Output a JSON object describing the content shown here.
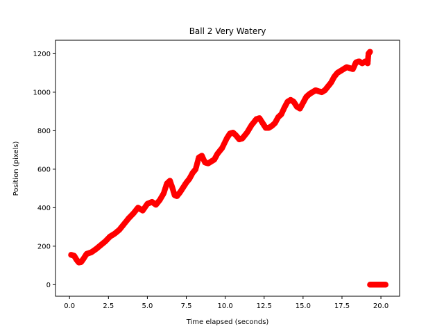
{
  "chart_data": {
    "type": "scatter",
    "title": "Ball 2 Very Watery",
    "xlabel": "Time elapsed (seconds)",
    "ylabel": "Position (pixels)",
    "xlim": [
      -0.9,
      21.2
    ],
    "ylim": [
      -60,
      1270
    ],
    "grid": false,
    "marker_color": "#ff0000",
    "x_ticks": [
      0.0,
      2.5,
      5.0,
      7.5,
      10.0,
      12.5,
      15.0,
      17.5,
      20.0
    ],
    "x_tick_labels": [
      "0.0",
      "2.5",
      "5.0",
      "7.5",
      "10.0",
      "12.5",
      "15.0",
      "17.5",
      "20.0"
    ],
    "y_ticks": [
      0,
      200,
      400,
      600,
      800,
      1000,
      1200
    ],
    "y_tick_labels": [
      "0",
      "200",
      "400",
      "600",
      "800",
      "1000",
      "1200"
    ],
    "series": [
      {
        "points": [
          [
            0.1,
            155
          ],
          [
            0.3,
            150
          ],
          [
            0.45,
            130
          ],
          [
            0.6,
            115
          ],
          [
            0.75,
            118
          ],
          [
            0.9,
            135
          ],
          [
            1.1,
            160
          ],
          [
            1.4,
            168
          ],
          [
            1.7,
            185
          ],
          [
            2.0,
            205
          ],
          [
            2.3,
            225
          ],
          [
            2.6,
            250
          ],
          [
            2.9,
            265
          ],
          [
            3.2,
            285
          ],
          [
            3.5,
            315
          ],
          [
            3.8,
            345
          ],
          [
            4.1,
            370
          ],
          [
            4.4,
            400
          ],
          [
            4.7,
            385
          ],
          [
            5.0,
            420
          ],
          [
            5.3,
            430
          ],
          [
            5.55,
            415
          ],
          [
            5.8,
            440
          ],
          [
            6.05,
            475
          ],
          [
            6.25,
            525
          ],
          [
            6.45,
            540
          ],
          [
            6.6,
            505
          ],
          [
            6.75,
            465
          ],
          [
            6.9,
            460
          ],
          [
            7.1,
            480
          ],
          [
            7.3,
            505
          ],
          [
            7.5,
            530
          ],
          [
            7.7,
            550
          ],
          [
            7.9,
            580
          ],
          [
            8.1,
            600
          ],
          [
            8.3,
            660
          ],
          [
            8.5,
            670
          ],
          [
            8.7,
            635
          ],
          [
            8.9,
            630
          ],
          [
            9.1,
            640
          ],
          [
            9.3,
            650
          ],
          [
            9.5,
            680
          ],
          [
            9.8,
            710
          ],
          [
            10.1,
            760
          ],
          [
            10.3,
            785
          ],
          [
            10.5,
            790
          ],
          [
            10.7,
            775
          ],
          [
            10.9,
            755
          ],
          [
            11.1,
            760
          ],
          [
            11.4,
            790
          ],
          [
            11.7,
            830
          ],
          [
            12.0,
            860
          ],
          [
            12.2,
            865
          ],
          [
            12.4,
            840
          ],
          [
            12.6,
            815
          ],
          [
            12.8,
            815
          ],
          [
            13.0,
            825
          ],
          [
            13.2,
            840
          ],
          [
            13.4,
            870
          ],
          [
            13.6,
            885
          ],
          [
            13.8,
            920
          ],
          [
            14.0,
            950
          ],
          [
            14.2,
            960
          ],
          [
            14.4,
            950
          ],
          [
            14.6,
            925
          ],
          [
            14.8,
            915
          ],
          [
            15.0,
            945
          ],
          [
            15.2,
            975
          ],
          [
            15.4,
            990
          ],
          [
            15.6,
            1000
          ],
          [
            15.8,
            1010
          ],
          [
            16.0,
            1005
          ],
          [
            16.2,
            1000
          ],
          [
            16.4,
            1010
          ],
          [
            16.6,
            1030
          ],
          [
            16.8,
            1050
          ],
          [
            17.0,
            1080
          ],
          [
            17.2,
            1100
          ],
          [
            17.4,
            1110
          ],
          [
            17.6,
            1120
          ],
          [
            17.8,
            1130
          ],
          [
            18.0,
            1125
          ],
          [
            18.2,
            1120
          ],
          [
            18.4,
            1155
          ],
          [
            18.6,
            1160
          ],
          [
            18.8,
            1150
          ],
          [
            19.0,
            1160
          ],
          [
            19.15,
            1150
          ],
          [
            19.2,
            1200
          ],
          [
            19.3,
            1210
          ],
          [
            19.3,
            0
          ],
          [
            19.5,
            0
          ],
          [
            19.7,
            0
          ],
          [
            19.9,
            0
          ],
          [
            20.1,
            0
          ],
          [
            20.3,
            0
          ]
        ]
      }
    ]
  }
}
